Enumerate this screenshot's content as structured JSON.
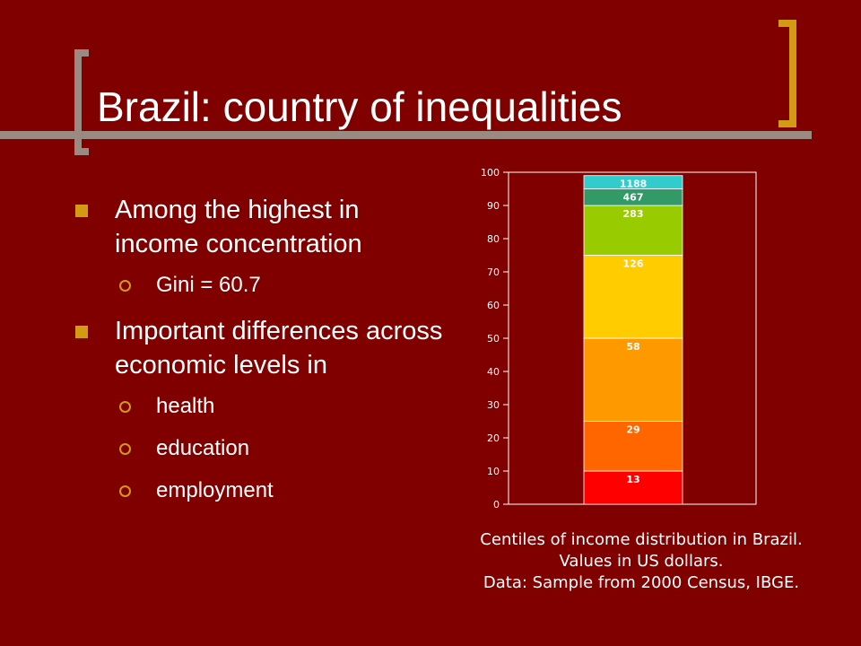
{
  "slide": {
    "title": "Brazil: country of inequalities",
    "bullets": [
      {
        "text": "Among the highest in income concentration",
        "sub": [
          "Gini = 60.7"
        ]
      },
      {
        "text": "Important differences across economic levels in",
        "sub": [
          "health",
          "education",
          "employment"
        ]
      }
    ],
    "caption": [
      "Centiles of income distribution in Brazil.",
      "Values in US dollars.",
      "Data: Sample from 2000 Census, IBGE."
    ]
  },
  "chart_data": {
    "type": "bar",
    "stacked": true,
    "ylim": [
      0,
      100
    ],
    "yticks": [
      0,
      10,
      20,
      30,
      40,
      50,
      60,
      70,
      80,
      90,
      100
    ],
    "segments": [
      {
        "from": 0,
        "to": 10,
        "label": "13",
        "color": "#ff0000"
      },
      {
        "from": 10,
        "to": 25,
        "label": "29",
        "color": "#ff6600"
      },
      {
        "from": 25,
        "to": 50,
        "label": "58",
        "color": "#ff9900"
      },
      {
        "from": 50,
        "to": 75,
        "label": "126",
        "color": "#ffcc00"
      },
      {
        "from": 75,
        "to": 90,
        "label": "283",
        "color": "#99cc00"
      },
      {
        "from": 90,
        "to": 95,
        "label": "467",
        "color": "#339966"
      },
      {
        "from": 95,
        "to": 99,
        "label": "1188",
        "color": "#33cccc"
      }
    ],
    "colors": {
      "plot_bg": "#800000",
      "axis": "#ffffff",
      "tick_text": "#ffffff"
    }
  }
}
